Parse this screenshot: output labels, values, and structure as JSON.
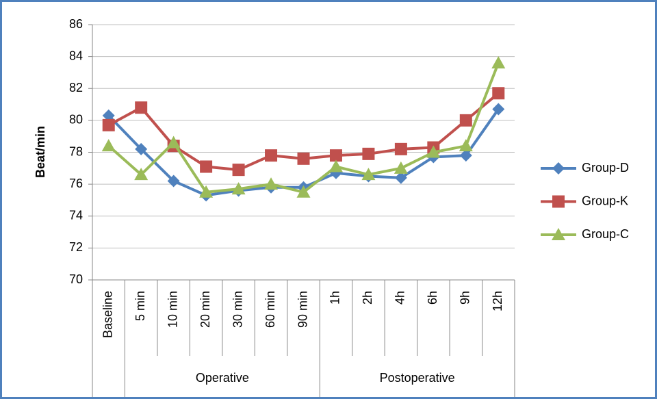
{
  "chart_data": {
    "type": "line",
    "y_label": "Beat/min",
    "categories": [
      "Baseline",
      "5 min",
      "10 min",
      "20 min",
      "30 min",
      "60 min",
      "90 min",
      "1h",
      "2h",
      "4h",
      "6h",
      "9h",
      "12h"
    ],
    "category_groups": [
      {
        "name": "Operative",
        "span": [
          1,
          6
        ]
      },
      {
        "name": "Postoperative",
        "span": [
          7,
          12
        ]
      }
    ],
    "series": [
      {
        "name": "Group-D",
        "color": "#4f81bd",
        "marker": "diamond",
        "values": [
          80.3,
          78.2,
          76.2,
          75.3,
          75.6,
          75.8,
          75.8,
          76.7,
          76.5,
          76.4,
          77.7,
          77.8,
          80.7
        ]
      },
      {
        "name": "Group-K",
        "color": "#c0504d",
        "marker": "square",
        "values": [
          79.7,
          80.8,
          78.4,
          77.1,
          76.9,
          77.8,
          77.6,
          77.8,
          77.9,
          78.2,
          78.3,
          80.0,
          81.7
        ]
      },
      {
        "name": "Group-C",
        "color": "#9bbb59",
        "marker": "triangle",
        "values": [
          78.4,
          76.6,
          78.6,
          75.5,
          75.7,
          76.0,
          75.5,
          77.1,
          76.6,
          77.0,
          78.0,
          78.4,
          83.6
        ]
      }
    ],
    "ylim": [
      70,
      86
    ],
    "yticks": [
      70,
      72,
      74,
      76,
      78,
      80,
      82,
      84,
      86
    ],
    "grid": true,
    "legend": "right"
  }
}
